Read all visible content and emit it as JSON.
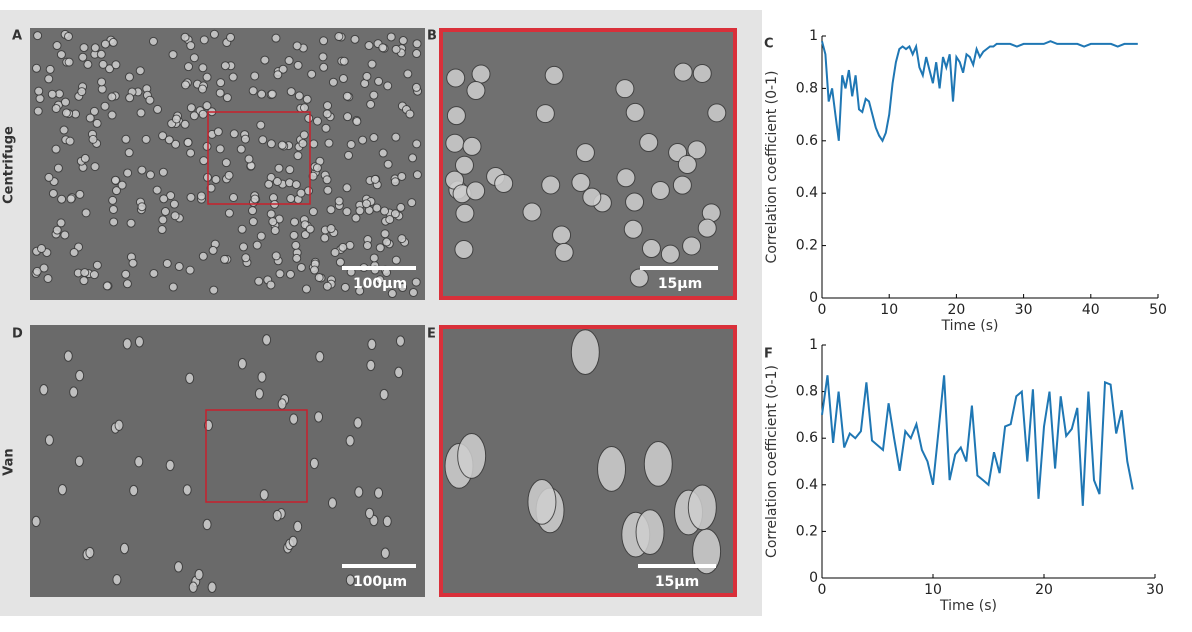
{
  "rows": [
    "Centrifuge",
    "Van"
  ],
  "panels": [
    {
      "label": "A",
      "scale_bar": "100μm"
    },
    {
      "label": "B",
      "scale_bar": "15μm"
    },
    {
      "label": "C"
    },
    {
      "label": "D",
      "scale_bar": "100μm"
    },
    {
      "label": "E",
      "scale_bar": "15μm"
    },
    {
      "label": "F"
    }
  ],
  "chart_data": [
    {
      "type": "line",
      "xlabel": "Time (s)",
      "ylabel": "Correlation coefficient (0-1)",
      "xlim": [
        0,
        50
      ],
      "xticks": [
        0,
        10,
        20,
        30,
        40,
        50
      ],
      "ylim": [
        0,
        1
      ],
      "yticks": [
        0,
        0.2,
        0.4,
        0.6,
        0.8,
        1
      ],
      "color": "#1f77b4",
      "x": [
        0,
        0.5,
        1,
        1.5,
        2,
        2.5,
        3,
        3.5,
        4,
        4.5,
        5,
        5.5,
        6,
        6.5,
        7,
        7.5,
        8,
        8.5,
        9,
        9.5,
        10,
        10.5,
        11,
        11.5,
        12,
        12.5,
        13,
        13.5,
        14,
        14.5,
        15,
        15.5,
        16,
        16.5,
        17,
        17.5,
        18,
        18.5,
        19,
        19.5,
        20,
        20.5,
        21,
        21.5,
        22,
        22.5,
        23,
        23.5,
        24,
        24.5,
        25,
        25.5,
        26,
        27,
        28,
        29,
        30,
        31,
        32,
        33,
        34,
        35,
        36,
        37,
        38,
        39,
        40,
        41,
        42,
        43,
        44,
        45,
        46,
        47
      ],
      "values": [
        0.98,
        0.93,
        0.75,
        0.8,
        0.7,
        0.6,
        0.85,
        0.8,
        0.87,
        0.77,
        0.85,
        0.72,
        0.71,
        0.76,
        0.75,
        0.7,
        0.65,
        0.62,
        0.6,
        0.63,
        0.7,
        0.82,
        0.9,
        0.95,
        0.96,
        0.95,
        0.96,
        0.93,
        0.96,
        0.88,
        0.85,
        0.92,
        0.87,
        0.82,
        0.9,
        0.8,
        0.92,
        0.88,
        0.93,
        0.75,
        0.92,
        0.9,
        0.86,
        0.93,
        0.92,
        0.89,
        0.95,
        0.92,
        0.94,
        0.95,
        0.96,
        0.96,
        0.97,
        0.97,
        0.97,
        0.96,
        0.97,
        0.97,
        0.97,
        0.97,
        0.98,
        0.97,
        0.97,
        0.97,
        0.97,
        0.96,
        0.97,
        0.97,
        0.97,
        0.97,
        0.96,
        0.97,
        0.97,
        0.97
      ]
    },
    {
      "type": "line",
      "xlabel": "Time (s)",
      "ylabel": "Correlation coefficient (0-1)",
      "xlim": [
        0,
        30
      ],
      "xticks": [
        0,
        10,
        20,
        30
      ],
      "ylim": [
        0,
        1
      ],
      "yticks": [
        0,
        0.2,
        0.4,
        0.6,
        0.8,
        1
      ],
      "color": "#1f77b4",
      "x": [
        0,
        0.5,
        1,
        1.5,
        2,
        2.5,
        3,
        3.5,
        4,
        4.5,
        5,
        5.5,
        6,
        6.5,
        7,
        7.5,
        8,
        8.5,
        9,
        9.5,
        10,
        10.5,
        11,
        11.5,
        12,
        12.5,
        13,
        13.5,
        14,
        14.5,
        15,
        15.5,
        16,
        16.5,
        17,
        17.5,
        18,
        18.5,
        19,
        19.5,
        20,
        20.5,
        21,
        21.5,
        22,
        22.5,
        23,
        23.5,
        24,
        24.5,
        25,
        25.5,
        26,
        26.5,
        27,
        27.5,
        28
      ],
      "values": [
        0.7,
        0.87,
        0.58,
        0.8,
        0.56,
        0.62,
        0.6,
        0.63,
        0.84,
        0.59,
        0.57,
        0.55,
        0.75,
        0.6,
        0.46,
        0.63,
        0.6,
        0.66,
        0.55,
        0.5,
        0.4,
        0.63,
        0.87,
        0.42,
        0.53,
        0.56,
        0.5,
        0.74,
        0.44,
        0.42,
        0.4,
        0.54,
        0.45,
        0.65,
        0.66,
        0.78,
        0.8,
        0.5,
        0.81,
        0.34,
        0.65,
        0.8,
        0.47,
        0.78,
        0.61,
        0.64,
        0.73,
        0.31,
        0.8,
        0.42,
        0.36,
        0.84,
        0.83,
        0.62,
        0.72,
        0.5,
        0.38
      ]
    }
  ]
}
